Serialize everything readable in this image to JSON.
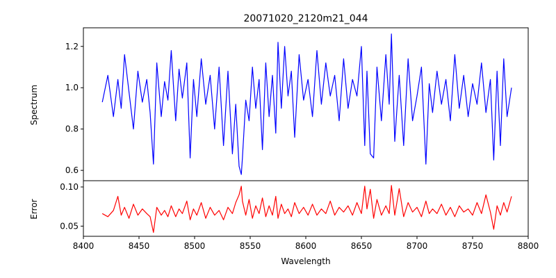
{
  "chart_data": [
    {
      "type": "line",
      "title": "20071020_2120m21_044",
      "xlabel": "",
      "ylabel": "Spectrum",
      "xlim": [
        8400,
        8800
      ],
      "ylim": [
        0.55,
        1.29
      ],
      "yticks": [
        0.6,
        0.8,
        1.0,
        1.2
      ],
      "ytick_labels": [
        "0.6",
        "0.8",
        "1.0",
        "1.2"
      ],
      "grid": false,
      "series": [
        {
          "color": "#0000ff",
          "x": [
            8417,
            8422,
            8427,
            8431,
            8434,
            8437,
            8441,
            8445,
            8449,
            8453,
            8457,
            8460,
            8463,
            8466,
            8470,
            8473,
            8476,
            8479,
            8483,
            8486,
            8489,
            8493,
            8496,
            8499,
            8502,
            8506,
            8510,
            8514,
            8518,
            8522,
            8526,
            8530,
            8534,
            8537,
            8540,
            8542,
            8543,
            8546,
            8549,
            8552,
            8555,
            8558,
            8561,
            8564,
            8567,
            8570,
            8573,
            8575,
            8578,
            8581,
            8584,
            8587,
            8590,
            8594,
            8598,
            8602,
            8606,
            8610,
            8614,
            8618,
            8622,
            8626,
            8630,
            8634,
            8638,
            8642,
            8646,
            8650,
            8653,
            8655,
            8658,
            8661,
            8664,
            8668,
            8672,
            8675,
            8677,
            8680,
            8684,
            8688,
            8692,
            8696,
            8700,
            8704,
            8708,
            8711,
            8714,
            8718,
            8722,
            8726,
            8730,
            8734,
            8738,
            8742,
            8746,
            8750,
            8754,
            8758,
            8762,
            8766,
            8769,
            8772,
            8775,
            8778,
            8781,
            8785
          ],
          "y": [
            0.93,
            1.06,
            0.86,
            1.04,
            0.9,
            1.16,
            0.98,
            0.8,
            1.08,
            0.93,
            1.04,
            0.88,
            0.63,
            1.12,
            0.86,
            1.03,
            0.94,
            1.18,
            0.84,
            1.09,
            0.95,
            1.12,
            0.66,
            1.04,
            0.86,
            1.14,
            0.92,
            1.06,
            0.8,
            1.1,
            0.72,
            1.08,
            0.68,
            0.92,
            0.62,
            0.58,
            0.66,
            0.94,
            0.84,
            1.1,
            0.9,
            1.04,
            0.7,
            1.12,
            0.86,
            1.06,
            0.78,
            1.22,
            0.9,
            1.2,
            0.96,
            1.08,
            0.76,
            1.16,
            0.94,
            1.04,
            0.86,
            1.18,
            0.92,
            1.12,
            0.96,
            1.06,
            0.84,
            1.14,
            0.9,
            1.04,
            0.96,
            1.2,
            0.72,
            1.08,
            0.68,
            0.66,
            1.1,
            0.84,
            1.16,
            0.92,
            1.26,
            0.74,
            1.06,
            0.72,
            1.14,
            0.84,
            0.96,
            1.1,
            0.63,
            1.02,
            0.88,
            1.08,
            0.92,
            1.04,
            0.84,
            1.16,
            0.9,
            1.06,
            0.86,
            1.02,
            0.92,
            1.12,
            0.88,
            1.04,
            0.65,
            1.08,
            0.72,
            1.14,
            0.86,
            1.0
          ]
        }
      ]
    },
    {
      "type": "line",
      "title": "",
      "xlabel": "Wavelength",
      "ylabel": "Error",
      "xlim": [
        8400,
        8800
      ],
      "ylim": [
        0.037,
        0.108
      ],
      "xticks": [
        8400,
        8450,
        8500,
        8550,
        8600,
        8650,
        8700,
        8750,
        8800
      ],
      "xtick_labels": [
        "8400",
        "8450",
        "8500",
        "8550",
        "8600",
        "8650",
        "8700",
        "8750",
        "8800"
      ],
      "yticks": [
        0.05,
        0.1
      ],
      "ytick_labels": [
        "0.05",
        "0.10"
      ],
      "grid": false,
      "series": [
        {
          "color": "#ff0000",
          "x": [
            8417,
            8422,
            8427,
            8431,
            8434,
            8437,
            8441,
            8445,
            8449,
            8453,
            8457,
            8460,
            8463,
            8466,
            8470,
            8473,
            8476,
            8479,
            8483,
            8486,
            8489,
            8493,
            8496,
            8499,
            8502,
            8506,
            8510,
            8514,
            8518,
            8522,
            8526,
            8530,
            8534,
            8537,
            8540,
            8542,
            8543,
            8546,
            8549,
            8552,
            8555,
            8558,
            8561,
            8564,
            8567,
            8570,
            8573,
            8575,
            8578,
            8581,
            8584,
            8587,
            8590,
            8594,
            8598,
            8602,
            8606,
            8610,
            8614,
            8618,
            8622,
            8626,
            8630,
            8634,
            8638,
            8642,
            8646,
            8650,
            8653,
            8655,
            8658,
            8661,
            8664,
            8668,
            8672,
            8675,
            8677,
            8680,
            8684,
            8688,
            8692,
            8696,
            8700,
            8704,
            8708,
            8711,
            8714,
            8718,
            8722,
            8726,
            8730,
            8734,
            8738,
            8742,
            8746,
            8750,
            8754,
            8758,
            8762,
            8766,
            8769,
            8772,
            8775,
            8778,
            8781,
            8785
          ],
          "y": [
            0.066,
            0.062,
            0.07,
            0.088,
            0.064,
            0.074,
            0.06,
            0.078,
            0.064,
            0.072,
            0.066,
            0.062,
            0.042,
            0.074,
            0.064,
            0.07,
            0.062,
            0.076,
            0.062,
            0.072,
            0.066,
            0.082,
            0.058,
            0.072,
            0.064,
            0.08,
            0.06,
            0.074,
            0.064,
            0.07,
            0.058,
            0.074,
            0.066,
            0.08,
            0.09,
            0.101,
            0.082,
            0.064,
            0.084,
            0.06,
            0.076,
            0.066,
            0.086,
            0.062,
            0.076,
            0.064,
            0.088,
            0.06,
            0.078,
            0.066,
            0.072,
            0.062,
            0.08,
            0.066,
            0.074,
            0.064,
            0.078,
            0.064,
            0.072,
            0.066,
            0.082,
            0.064,
            0.074,
            0.068,
            0.076,
            0.064,
            0.08,
            0.066,
            0.101,
            0.072,
            0.097,
            0.06,
            0.084,
            0.064,
            0.076,
            0.066,
            0.102,
            0.064,
            0.098,
            0.062,
            0.08,
            0.068,
            0.074,
            0.062,
            0.082,
            0.066,
            0.072,
            0.066,
            0.078,
            0.064,
            0.074,
            0.062,
            0.076,
            0.068,
            0.072,
            0.064,
            0.08,
            0.066,
            0.09,
            0.068,
            0.046,
            0.076,
            0.064,
            0.08,
            0.068,
            0.088
          ]
        }
      ]
    }
  ]
}
